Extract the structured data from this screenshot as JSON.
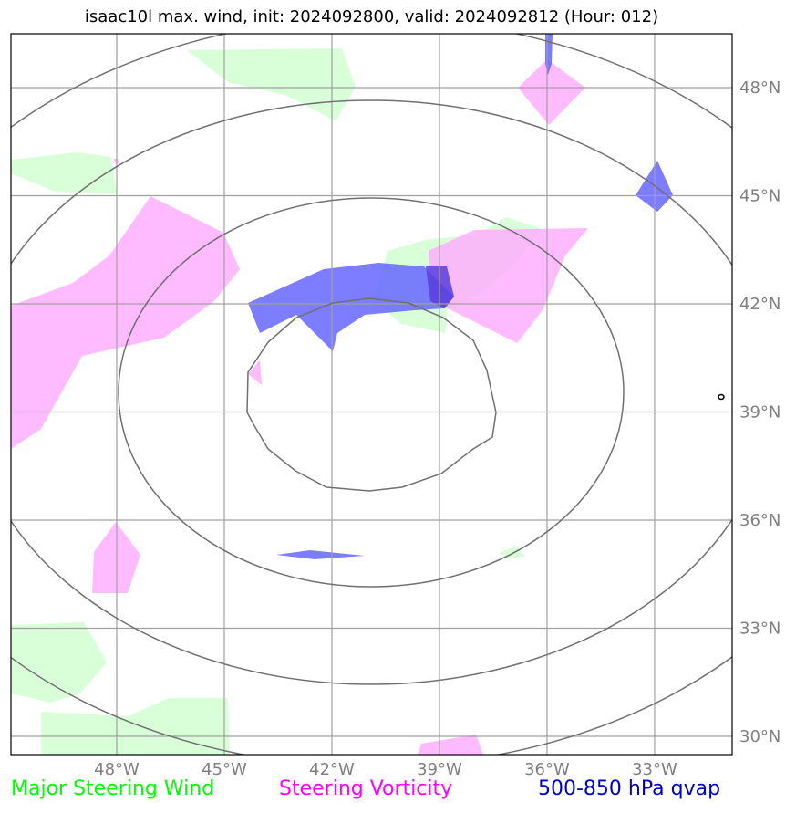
{
  "title": "isaac10l max. wind, init: 2024092800, valid: 2024092812 (Hour: 012)",
  "map": {
    "lon_ticks": [
      {
        "value": -48,
        "label": "48°W"
      },
      {
        "value": -45,
        "label": "45°W"
      },
      {
        "value": -42,
        "label": "42°W"
      },
      {
        "value": -39,
        "label": "39°W"
      },
      {
        "value": -36,
        "label": "36°W"
      },
      {
        "value": -33,
        "label": "33°W"
      }
    ],
    "lat_ticks": [
      {
        "value": 48,
        "label": "48°N"
      },
      {
        "value": 45,
        "label": "45°N"
      },
      {
        "value": 42,
        "label": "42°N"
      },
      {
        "value": 39,
        "label": "39°N"
      },
      {
        "value": 36,
        "label": "36°N"
      },
      {
        "value": 33,
        "label": "33°N"
      },
      {
        "value": 30,
        "label": "30°N"
      }
    ],
    "extent": {
      "lon": [
        -51,
        -31
      ],
      "lat": [
        29.5,
        49.5
      ]
    },
    "range_rings": 4
  },
  "legend": {
    "wind": {
      "label": "Major Steering Wind",
      "color": "#00ff00"
    },
    "vorticity": {
      "label": "Steering Vorticity",
      "color": "#ff00ff"
    },
    "qvap": {
      "label": "500-850 hPa qvap",
      "color": "#0000cc"
    }
  },
  "colors": {
    "wind_fill": "#ccffcc",
    "vort_fill": "#ffaaff",
    "qvap_fill": "#6666ff",
    "grid": "#a0a0a0",
    "ring": "#707070"
  }
}
